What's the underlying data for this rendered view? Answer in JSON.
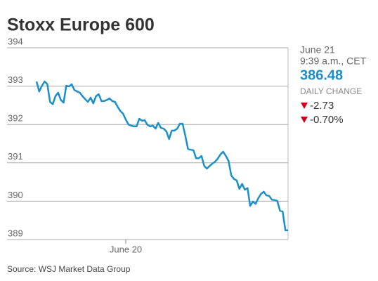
{
  "chart_data": {
    "type": "line",
    "title": "Stoxx Europe 600",
    "source": "Source: WSJ Market Data Group",
    "panel": {
      "date": "June 21",
      "time": "9:39 a.m., CET",
      "price": "386.48",
      "change_label": "DAILY CHANGE",
      "change": "-2.73",
      "change_pct": "-0.70%"
    },
    "series": [
      {
        "name": "Stoxx Europe 600",
        "color": "#1a8fc9",
        "values": [
          393.12,
          392.86,
          393.01,
          393.12,
          393.05,
          392.59,
          392.53,
          392.74,
          392.83,
          392.64,
          392.57,
          393.01,
          392.99,
          393.05,
          392.9,
          392.86,
          392.83,
          392.74,
          392.66,
          392.59,
          392.7,
          392.55,
          392.74,
          392.79,
          392.61,
          392.61,
          392.64,
          392.68,
          392.61,
          392.59,
          392.46,
          392.35,
          392.28,
          392.13,
          392.0,
          391.97,
          391.95,
          391.95,
          392.15,
          392.1,
          392.11,
          391.99,
          391.95,
          391.97,
          391.89,
          392.04,
          391.91,
          391.89,
          391.82,
          391.62,
          391.84,
          391.84,
          391.89,
          392.02,
          392.02,
          391.71,
          391.36,
          391.34,
          391.33,
          391.12,
          391.12,
          391.18,
          390.92,
          390.85,
          390.92,
          390.98,
          391.03,
          391.11,
          391.22,
          391.29,
          391.18,
          391.05,
          390.67,
          390.58,
          390.54,
          390.32,
          390.45,
          390.3,
          390.34,
          389.88,
          389.99,
          389.93,
          390.08,
          390.19,
          390.25,
          390.15,
          390.14,
          390.04,
          390.03,
          390.01,
          389.75,
          389.73,
          389.24,
          389.24
        ]
      }
    ],
    "xticks": [
      {
        "value": 33,
        "label": "June 20"
      }
    ],
    "ylim": [
      389,
      394
    ],
    "yticks": [
      389,
      390,
      391,
      392,
      393,
      394
    ],
    "grid": true
  }
}
